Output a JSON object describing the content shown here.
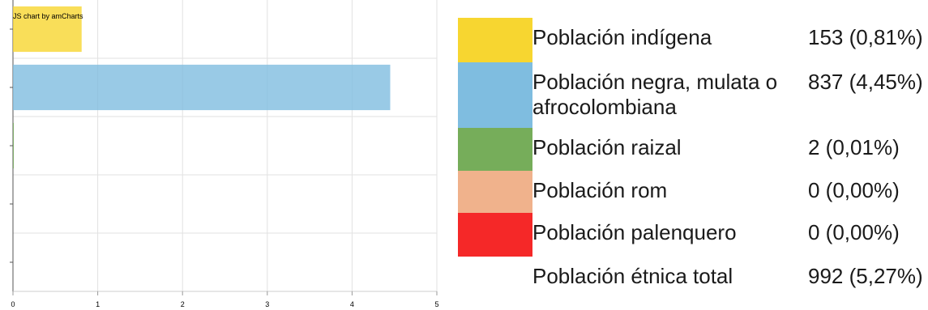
{
  "chart_data": {
    "type": "bar",
    "orientation": "horizontal",
    "credit": "JS chart by amCharts",
    "categories": [
      "Población indígena",
      "Población negra, mulata o afrocolombiana",
      "Población raizal",
      "Población rom",
      "Población palenquero"
    ],
    "values": [
      0.81,
      4.45,
      0.01,
      0.0,
      0.0
    ],
    "colors": [
      "#f7d630",
      "#7fbde0",
      "#76ad5a",
      "#f0b28c",
      "#f52828"
    ],
    "xlim": [
      0,
      5
    ],
    "xticks": [
      "0",
      "1",
      "2",
      "3",
      "4",
      "5"
    ],
    "grid": true
  },
  "legend": {
    "items": [
      {
        "label": "Población indígena",
        "value": "153 (0,81%)",
        "color": "#f7d630"
      },
      {
        "label": "Población negra, mulata o afrocolombiana",
        "value": "837 (4,45%)",
        "color": "#7fbde0"
      },
      {
        "label": "Población raizal",
        "value": "2 (0,01%)",
        "color": "#76ad5a"
      },
      {
        "label": "Población rom",
        "value": "0 (0,00%)",
        "color": "#f0b28c"
      },
      {
        "label": "Población palenquero",
        "value": "0 (0,00%)",
        "color": "#f52828"
      }
    ],
    "total": {
      "label": "Población étnica total",
      "value": "992 (5,27%)"
    }
  }
}
